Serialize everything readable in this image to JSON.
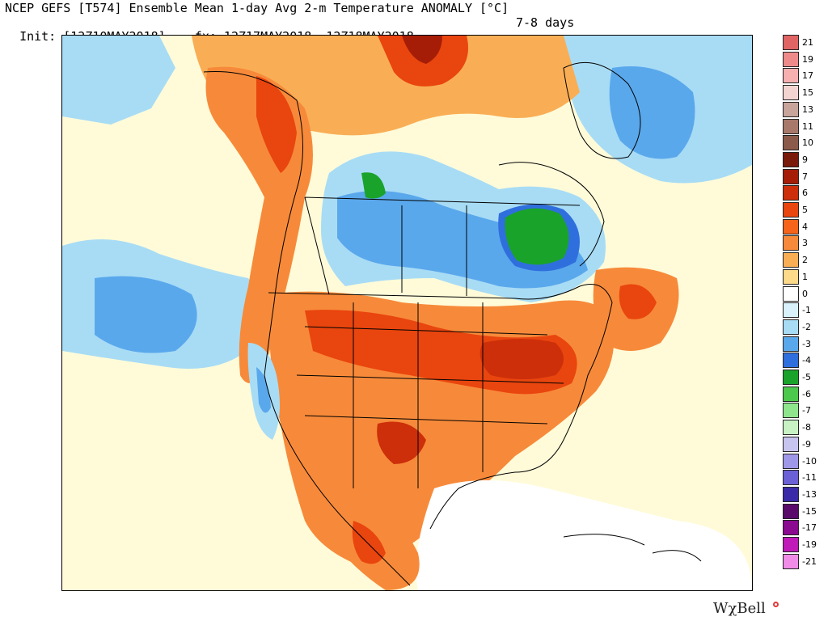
{
  "header": {
    "title_line": "NCEP GEFS [T574] Ensemble Mean 1-day Avg 2-m Temperature ANOMALY [°C]",
    "init_line": "Init: [12Z10MAY2018] -- fx: 12Z17MAY2018--12Z18MAY2018",
    "period_label": "7-8 days"
  },
  "legend": {
    "labels": [
      "21",
      "19",
      "17",
      "15",
      "13",
      "11",
      "10",
      "9",
      "7",
      "6",
      "5",
      "4",
      "3",
      "2",
      "1",
      "0",
      "-1",
      "-2",
      "-3",
      "-4",
      "-5",
      "-6",
      "-7",
      "-8",
      "-9",
      "-10",
      "-11",
      "-13",
      "-15",
      "-17",
      "-19",
      "-21"
    ],
    "colors": [
      "#e06464",
      "#ef8a8a",
      "#f6b0b0",
      "#f3d4d0",
      "#c9a49a",
      "#a8786a",
      "#8c5a4a",
      "#7a1a0a",
      "#a51d07",
      "#cc2f0a",
      "#e9450e",
      "#f5641a",
      "#f78a3a",
      "#f9ae55",
      "#fdd98a",
      "#ffffff",
      "#d8f1fb",
      "#a8dcf5",
      "#5aa8ec",
      "#2f6fdd",
      "#1aa32a",
      "#4cc84c",
      "#8fe58c",
      "#c8f2c4",
      "#c8c4f0",
      "#9f97e8",
      "#6c60d6",
      "#3a2aa8",
      "#5a0a6a",
      "#8a0a90",
      "#c01ab8",
      "#f08be8"
    ]
  },
  "map": {
    "region": "North America",
    "colors": {
      "ocean_neutral": "#fffbd9",
      "warm_light": "#f9ae55",
      "warm": "#f78a3a",
      "warm_strong": "#e9450e",
      "hot": "#cc2f0a",
      "cool_light": "#a8dcf5",
      "cool": "#5aa8ec",
      "cool_strong": "#2f6fdd",
      "cold": "#1aa32a",
      "white": "#ffffff"
    }
  },
  "brand": {
    "name": "WχBell"
  }
}
